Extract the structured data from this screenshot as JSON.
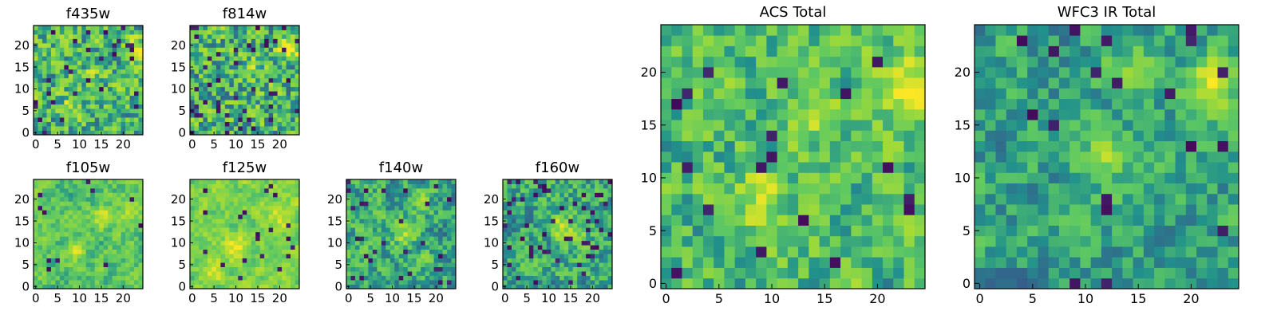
{
  "colors": {
    "cmap": [
      "#440154",
      "#3b528b",
      "#21918c",
      "#5ec962",
      "#a5db36",
      "#fde725"
    ],
    "frame": "#000000",
    "background": "#ffffff"
  },
  "chart_data": [
    {
      "type": "heatmap",
      "title": "f435w",
      "xticks": [
        0,
        5,
        10,
        15,
        20
      ],
      "yticks": [
        0,
        5,
        10,
        15,
        20
      ],
      "xlim": [
        0,
        24
      ],
      "ylim": [
        0,
        24
      ],
      "grid": false,
      "colormap": "viridis",
      "seed": 11,
      "bias": 0.55,
      "noise": 0.35,
      "smooth": 0.25,
      "dark_frac": 0.05,
      "hotspots": [
        [
          23,
          19,
          0.4
        ],
        [
          8,
          6,
          0.25
        ],
        [
          14,
          14,
          0.2
        ]
      ]
    },
    {
      "type": "heatmap",
      "title": "f814w",
      "xticks": [
        0,
        5,
        10,
        15,
        20
      ],
      "yticks": [
        0,
        5,
        10,
        15,
        20
      ],
      "xlim": [
        0,
        24
      ],
      "ylim": [
        0,
        24
      ],
      "grid": false,
      "colormap": "viridis",
      "seed": 23,
      "bias": 0.55,
      "noise": 0.38,
      "smooth": 0.25,
      "dark_frac": 0.06,
      "hotspots": [
        [
          22,
          19,
          0.45
        ],
        [
          14,
          14,
          0.2
        ]
      ]
    },
    {
      "type": "heatmap",
      "title": "f105w",
      "xticks": [
        0,
        5,
        10,
        15,
        20
      ],
      "yticks": [
        0,
        5,
        10,
        15,
        20
      ],
      "xlim": [
        0,
        24
      ],
      "ylim": [
        0,
        24
      ],
      "grid": false,
      "colormap": "viridis",
      "seed": 37,
      "bias": 0.6,
      "noise": 0.28,
      "smooth": 0.55,
      "dark_frac": 0.02,
      "hotspots": [
        [
          22,
          18,
          0.35
        ],
        [
          15,
          16,
          0.25
        ],
        [
          9,
          8,
          0.2
        ]
      ]
    },
    {
      "type": "heatmap",
      "title": "f125w",
      "xticks": [
        0,
        5,
        10,
        15,
        20
      ],
      "yticks": [
        0,
        5,
        10,
        15,
        20
      ],
      "xlim": [
        0,
        24
      ],
      "ylim": [
        0,
        24
      ],
      "grid": false,
      "colormap": "viridis",
      "seed": 41,
      "bias": 0.68,
      "noise": 0.26,
      "smooth": 0.55,
      "dark_frac": 0.03,
      "hotspots": [
        [
          10,
          9,
          0.3
        ],
        [
          5,
          4,
          0.25
        ],
        [
          20,
          16,
          0.2
        ]
      ]
    },
    {
      "type": "heatmap",
      "title": "f140w",
      "xticks": [
        0,
        5,
        10,
        15,
        20
      ],
      "yticks": [
        0,
        5,
        10,
        15,
        20
      ],
      "xlim": [
        0,
        24
      ],
      "ylim": [
        0,
        24
      ],
      "grid": false,
      "colormap": "viridis",
      "seed": 53,
      "bias": 0.5,
      "noise": 0.34,
      "smooth": 0.5,
      "dark_frac": 0.06,
      "hotspots": [
        [
          13,
          12,
          0.3
        ],
        [
          16,
          20,
          0.25
        ]
      ]
    },
    {
      "type": "heatmap",
      "title": "f160w",
      "xticks": [
        0,
        5,
        10,
        15,
        20
      ],
      "yticks": [
        0,
        5,
        10,
        15,
        20
      ],
      "xlim": [
        0,
        24
      ],
      "ylim": [
        0,
        24
      ],
      "grid": false,
      "colormap": "viridis",
      "seed": 67,
      "bias": 0.5,
      "noise": 0.34,
      "smooth": 0.5,
      "dark_frac": 0.06,
      "hotspots": [
        [
          13,
          14,
          0.35
        ],
        [
          17,
          12,
          0.25
        ]
      ]
    },
    {
      "type": "heatmap",
      "title": "ACS Total",
      "xticks": [
        0,
        5,
        10,
        15,
        20
      ],
      "yticks": [
        0,
        5,
        10,
        15,
        20
      ],
      "xlim": [
        0,
        24
      ],
      "ylim": [
        0,
        24
      ],
      "grid": false,
      "colormap": "viridis",
      "seed": 79,
      "bias": 0.58,
      "noise": 0.3,
      "smooth": 0.35,
      "dark_frac": 0.04,
      "hotspots": [
        [
          23,
          19,
          0.45
        ],
        [
          9,
          8,
          0.3
        ],
        [
          15,
          15,
          0.2
        ]
      ]
    },
    {
      "type": "heatmap",
      "title": "WFC3 IR Total",
      "xticks": [
        0,
        5,
        10,
        15,
        20
      ],
      "yticks": [
        0,
        5,
        10,
        15,
        20
      ],
      "xlim": [
        0,
        24
      ],
      "ylim": [
        0,
        24
      ],
      "grid": false,
      "colormap": "viridis",
      "seed": 97,
      "bias": 0.45,
      "noise": 0.25,
      "smooth": 0.45,
      "dark_frac": 0.035,
      "hotspots": [
        [
          22,
          19,
          0.45
        ],
        [
          14,
          20,
          0.3
        ],
        [
          12,
          12,
          0.3
        ]
      ]
    }
  ]
}
